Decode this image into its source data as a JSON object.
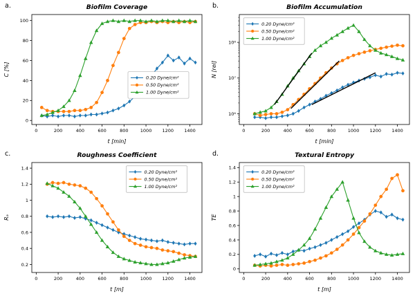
{
  "figure": {
    "background": "#ffffff",
    "panel_labels": [
      "a.",
      "b.",
      "c.",
      "d."
    ]
  },
  "colors": {
    "blue": "#1f77b4",
    "orange": "#ff7f0e",
    "green": "#2ca02c",
    "fit": "#000000"
  },
  "chart_data": [
    {
      "id": "a",
      "type": "line",
      "title": "Biofilm Coverage",
      "xlabel": "t [min]",
      "ylabel": "C [%]",
      "xlim": [
        -40,
        1510
      ],
      "ylim": [
        -4,
        106
      ],
      "xticks": [
        0,
        200,
        400,
        600,
        800,
        1000,
        1200,
        1400
      ],
      "yticks": [
        0,
        20,
        40,
        60,
        80,
        100
      ],
      "yscale": "linear",
      "grid": false,
      "legend": {
        "loc": [
          0.565,
          0.52
        ]
      },
      "x": [
        50,
        100,
        150,
        200,
        250,
        300,
        350,
        400,
        450,
        500,
        550,
        600,
        650,
        700,
        750,
        800,
        850,
        900,
        950,
        1000,
        1050,
        1100,
        1150,
        1200,
        1250,
        1300,
        1350,
        1400,
        1450
      ],
      "series": [
        {
          "name": "0.20 Dyne/cm²",
          "color": "#1f77b4",
          "marker": "diamond",
          "y": [
            5,
            4,
            5,
            4,
            5,
            5,
            4,
            5,
            5,
            6,
            6,
            7,
            8,
            10,
            12,
            15,
            19,
            24,
            30,
            38,
            45,
            52,
            58,
            65,
            60,
            63,
            57,
            62,
            58
          ]
        },
        {
          "name": "0.50 Dyne/cm²",
          "color": "#ff7f0e",
          "marker": "circle",
          "y": [
            13,
            10,
            9,
            9,
            9,
            9,
            10,
            10,
            11,
            13,
            18,
            28,
            40,
            55,
            68,
            82,
            92,
            96,
            98,
            98,
            99,
            98,
            99,
            98,
            99,
            98,
            99,
            98,
            99
          ]
        },
        {
          "name": "1.00 Dyne/cm²",
          "color": "#2ca02c",
          "marker": "triangle",
          "y": [
            5,
            6,
            8,
            10,
            14,
            20,
            30,
            45,
            62,
            78,
            90,
            97,
            99,
            100,
            99,
            100,
            99,
            100,
            100,
            99,
            100,
            99,
            100,
            100,
            99,
            100,
            99,
            100,
            99
          ]
        }
      ]
    },
    {
      "id": "b",
      "type": "line",
      "title": "Biofilm Accumulation",
      "xlabel": "t [min]",
      "ylabel": "N [rel]",
      "xlim": [
        -40,
        1510
      ],
      "ylim": [
        500000.0,
        600000000.0
      ],
      "xticks": [
        0,
        200,
        400,
        600,
        800,
        1000,
        1200,
        1400
      ],
      "yticks": [
        1000000.0,
        10000000.0,
        100000000.0
      ],
      "ytick_labels": [
        "10⁶",
        "10⁷",
        "10⁸"
      ],
      "yscale": "log",
      "grid": false,
      "legend": {
        "loc": [
          0.025,
          0.03
        ]
      },
      "x": [
        100,
        150,
        200,
        250,
        300,
        350,
        400,
        450,
        500,
        550,
        600,
        650,
        700,
        750,
        800,
        850,
        900,
        950,
        1000,
        1050,
        1100,
        1150,
        1200,
        1250,
        1300,
        1350,
        1400,
        1450
      ],
      "series": [
        {
          "name": "0.20 Dyne/cm²",
          "color": "#1f77b4",
          "marker": "diamond",
          "y": [
            800000.0,
            800000.0,
            750000.0,
            800000.0,
            800000.0,
            850000.0,
            900000.0,
            1000000.0,
            1200000.0,
            1500000.0,
            1800000.0,
            2200000.0,
            2600000.0,
            3200000.0,
            3800000.0,
            4500000.0,
            5500000.0,
            6500000.0,
            7500000.0,
            8500000.0,
            9500000.0,
            10500000.0,
            12000000.0,
            11000000.0,
            13000000.0,
            12500000.0,
            14000000.0,
            13500000.0
          ]
        },
        {
          "name": "0.50 Dyne/cm²",
          "color": "#ff7f0e",
          "marker": "circle",
          "y": [
            1000000.0,
            900000.0,
            950000.0,
            1000000.0,
            1000000.0,
            1100000.0,
            1300000.0,
            1800000.0,
            2500000.0,
            3500000.0,
            5000000.0,
            7000000.0,
            10000000.0,
            14000000.0,
            19000000.0,
            25000000.0,
            31000000.0,
            37000000.0,
            43000000.0,
            48000000.0,
            53000000.0,
            58000000.0,
            63000000.0,
            68000000.0,
            73000000.0,
            78000000.0,
            83000000.0,
            80000000.0
          ]
        },
        {
          "name": "1.00 Dyne/cm²",
          "color": "#2ca02c",
          "marker": "triangle",
          "y": [
            1000000.0,
            1100000.0,
            1200000.0,
            1500000.0,
            2200000.0,
            3500000.0,
            6000000.0,
            10000000.0,
            16000000.0,
            25000000.0,
            40000000.0,
            60000000.0,
            80000000.0,
            100000000.0,
            130000000.0,
            160000000.0,
            200000000.0,
            250000000.0,
            300000000.0,
            200000000.0,
            120000000.0,
            80000000.0,
            60000000.0,
            50000000.0,
            45000000.0,
            40000000.0,
            35000000.0,
            32000000.0
          ]
        }
      ],
      "fit_lines": [
        {
          "x": [
            280,
            620
          ],
          "y": [
            1800000.0,
            50000000.0
          ]
        },
        {
          "x": [
            430,
            870
          ],
          "y": [
            1400000.0,
            30000000.0
          ]
        },
        {
          "x": [
            620,
            1200
          ],
          "y": [
            1800000.0,
            14000000.0
          ]
        }
      ]
    },
    {
      "id": "c",
      "type": "line",
      "title": "Roughness Coefficient",
      "xlabel": "t [m]",
      "ylabel": "Rₐ",
      "xlim": [
        -40,
        1510
      ],
      "ylim": [
        0.1,
        1.47
      ],
      "xticks": [
        0,
        200,
        400,
        600,
        800,
        1000,
        1200,
        1400
      ],
      "yticks": [
        0.2,
        0.4,
        0.6,
        0.8,
        1.0,
        1.2,
        1.4
      ],
      "yscale": "linear",
      "grid": false,
      "legend": {
        "loc": [
          0.555,
          0.03
        ]
      },
      "x": [
        100,
        150,
        200,
        250,
        300,
        350,
        400,
        450,
        500,
        550,
        600,
        650,
        700,
        750,
        800,
        850,
        900,
        950,
        1000,
        1050,
        1100,
        1150,
        1200,
        1250,
        1300,
        1350,
        1400,
        1450
      ],
      "series": [
        {
          "name": "0.20 Dyne/cm²",
          "color": "#1f77b4",
          "marker": "diamond",
          "y": [
            0.8,
            0.79,
            0.8,
            0.79,
            0.8,
            0.78,
            0.79,
            0.77,
            0.75,
            0.72,
            0.69,
            0.66,
            0.63,
            0.6,
            0.58,
            0.56,
            0.54,
            0.52,
            0.51,
            0.5,
            0.49,
            0.5,
            0.48,
            0.47,
            0.46,
            0.45,
            0.46,
            0.46
          ]
        },
        {
          "name": "0.50 Dyne/cm²",
          "color": "#ff7f0e",
          "marker": "circle",
          "y": [
            1.2,
            1.22,
            1.21,
            1.22,
            1.2,
            1.19,
            1.18,
            1.15,
            1.1,
            1.02,
            0.93,
            0.83,
            0.73,
            0.63,
            0.55,
            0.5,
            0.46,
            0.44,
            0.42,
            0.41,
            0.4,
            0.38,
            0.37,
            0.36,
            0.34,
            0.32,
            0.31,
            0.3
          ]
        },
        {
          "name": "1.00 Dyne/cm²",
          "color": "#2ca02c",
          "marker": "triangle",
          "y": [
            1.21,
            1.18,
            1.15,
            1.1,
            1.05,
            0.98,
            0.9,
            0.8,
            0.7,
            0.6,
            0.5,
            0.42,
            0.35,
            0.3,
            0.27,
            0.25,
            0.23,
            0.22,
            0.21,
            0.2,
            0.2,
            0.21,
            0.22,
            0.24,
            0.26,
            0.28,
            0.29,
            0.3
          ]
        }
      ]
    },
    {
      "id": "d",
      "type": "line",
      "title": "Textural Entropy",
      "xlabel": "t [m]",
      "ylabel": "TE",
      "xlim": [
        -40,
        1510
      ],
      "ylim": [
        -0.05,
        1.47
      ],
      "xticks": [
        0,
        200,
        400,
        600,
        800,
        1000,
        1200,
        1400
      ],
      "yticks": [
        0.0,
        0.2,
        0.4,
        0.6,
        0.8,
        1.0,
        1.2,
        1.4
      ],
      "yscale": "linear",
      "grid": false,
      "legend": {
        "loc": [
          0.025,
          0.03
        ]
      },
      "x": [
        100,
        150,
        200,
        250,
        300,
        350,
        400,
        450,
        500,
        550,
        600,
        650,
        700,
        750,
        800,
        850,
        900,
        950,
        1000,
        1050,
        1100,
        1150,
        1200,
        1250,
        1300,
        1350,
        1400,
        1450
      ],
      "series": [
        {
          "name": "0.20 Dyne/cm²",
          "color": "#1f77b4",
          "marker": "diamond",
          "y": [
            0.18,
            0.2,
            0.17,
            0.21,
            0.19,
            0.22,
            0.2,
            0.24,
            0.26,
            0.25,
            0.28,
            0.3,
            0.33,
            0.36,
            0.4,
            0.44,
            0.48,
            0.52,
            0.58,
            0.63,
            0.68,
            0.75,
            0.8,
            0.78,
            0.72,
            0.75,
            0.7,
            0.68
          ]
        },
        {
          "name": "0.50 Dyne/cm²",
          "color": "#ff7f0e",
          "marker": "circle",
          "y": [
            0.05,
            0.04,
            0.05,
            0.04,
            0.05,
            0.06,
            0.05,
            0.06,
            0.07,
            0.08,
            0.1,
            0.12,
            0.15,
            0.18,
            0.22,
            0.27,
            0.33,
            0.4,
            0.48,
            0.57,
            0.66,
            0.76,
            0.88,
            1.0,
            1.1,
            1.25,
            1.3,
            1.08
          ]
        },
        {
          "name": "1.00 Dyne/cm²",
          "color": "#2ca02c",
          "marker": "triangle",
          "y": [
            0.05,
            0.06,
            0.07,
            0.08,
            0.1,
            0.12,
            0.15,
            0.2,
            0.26,
            0.33,
            0.42,
            0.55,
            0.7,
            0.85,
            1.0,
            1.1,
            1.2,
            0.95,
            0.7,
            0.5,
            0.38,
            0.3,
            0.25,
            0.22,
            0.2,
            0.19,
            0.2,
            0.21
          ]
        }
      ]
    }
  ]
}
